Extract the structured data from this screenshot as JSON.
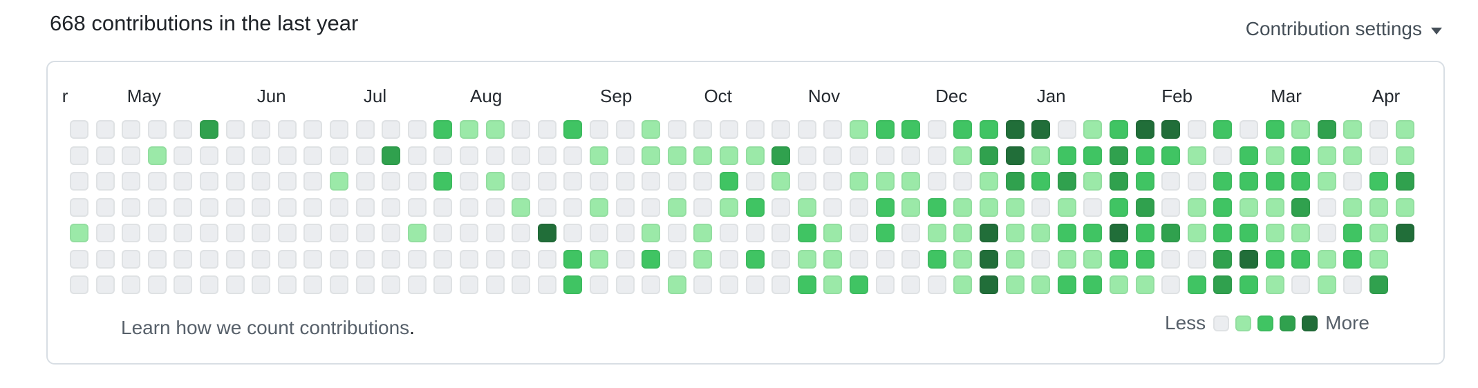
{
  "header": {
    "title": "668 contributions in the last year",
    "settings_label": "Contribution settings"
  },
  "footer": {
    "link_text": "Learn how we count contributions",
    "period": ".",
    "legend_less": "Less",
    "legend_more": "More"
  },
  "chart_data": {
    "type": "heatmap",
    "title": "668 contributions in the last year",
    "rows": "days (Sun-Sat, top to bottom)",
    "columns": "weeks (52, oldest to newest; last week partial with 5 days)",
    "legend_position": "bottom-right",
    "palette": [
      "#ebedf0",
      "#9be9a8",
      "#40c463",
      "#30a14e",
      "#216e39"
    ],
    "month_labels": [
      {
        "label": "r",
        "col": -0.3
      },
      {
        "label": "May",
        "col": 2.2
      },
      {
        "label": "Jun",
        "col": 7.2
      },
      {
        "label": "Jul",
        "col": 11.3
      },
      {
        "label": "Aug",
        "col": 15.4
      },
      {
        "label": "Sep",
        "col": 20.4
      },
      {
        "label": "Oct",
        "col": 24.4
      },
      {
        "label": "Nov",
        "col": 28.4
      },
      {
        "label": "Dec",
        "col": 33.3
      },
      {
        "label": "Jan",
        "col": 37.2
      },
      {
        "label": "Feb",
        "col": 42.0
      },
      {
        "label": "Mar",
        "col": 46.2
      },
      {
        "label": "Apr",
        "col": 50.1
      }
    ],
    "weeks": [
      [
        0,
        0,
        0,
        0,
        1,
        0,
        0
      ],
      [
        0,
        0,
        0,
        0,
        0,
        0,
        0
      ],
      [
        0,
        0,
        0,
        0,
        0,
        0,
        0
      ],
      [
        0,
        1,
        0,
        0,
        0,
        0,
        0
      ],
      [
        0,
        0,
        0,
        0,
        0,
        0,
        0
      ],
      [
        3,
        0,
        0,
        0,
        0,
        0,
        0
      ],
      [
        0,
        0,
        0,
        0,
        0,
        0,
        0
      ],
      [
        0,
        0,
        0,
        0,
        0,
        0,
        0
      ],
      [
        0,
        0,
        0,
        0,
        0,
        0,
        0
      ],
      [
        0,
        0,
        0,
        0,
        0,
        0,
        0
      ],
      [
        0,
        0,
        1,
        0,
        0,
        0,
        0
      ],
      [
        0,
        0,
        0,
        0,
        0,
        0,
        0
      ],
      [
        0,
        3,
        0,
        0,
        0,
        0,
        0
      ],
      [
        0,
        0,
        0,
        0,
        1,
        0,
        0
      ],
      [
        2,
        0,
        2,
        0,
        0,
        0,
        0
      ],
      [
        1,
        0,
        0,
        0,
        0,
        0,
        0
      ],
      [
        1,
        0,
        1,
        0,
        0,
        0,
        0
      ],
      [
        0,
        0,
        0,
        1,
        0,
        0,
        0
      ],
      [
        0,
        0,
        0,
        0,
        4,
        0,
        0
      ],
      [
        2,
        0,
        0,
        0,
        0,
        2,
        2
      ],
      [
        0,
        1,
        0,
        1,
        0,
        1,
        0
      ],
      [
        0,
        0,
        0,
        0,
        0,
        0,
        0
      ],
      [
        1,
        1,
        0,
        0,
        1,
        2,
        0
      ],
      [
        0,
        1,
        0,
        1,
        0,
        0,
        1
      ],
      [
        0,
        1,
        0,
        0,
        1,
        1,
        0
      ],
      [
        0,
        1,
        2,
        1,
        0,
        0,
        0
      ],
      [
        0,
        1,
        0,
        2,
        0,
        2,
        0
      ],
      [
        0,
        3,
        1,
        0,
        0,
        0,
        0
      ],
      [
        0,
        0,
        0,
        1,
        2,
        1,
        2
      ],
      [
        0,
        0,
        0,
        0,
        1,
        1,
        1
      ],
      [
        1,
        0,
        1,
        0,
        0,
        0,
        2
      ],
      [
        2,
        0,
        1,
        2,
        2,
        0,
        0
      ],
      [
        2,
        0,
        1,
        1,
        0,
        0,
        0
      ],
      [
        0,
        0,
        0,
        2,
        1,
        2,
        0
      ],
      [
        2,
        1,
        0,
        1,
        1,
        1,
        1
      ],
      [
        2,
        3,
        1,
        1,
        4,
        4,
        4
      ],
      [
        4,
        4,
        3,
        1,
        1,
        1,
        1
      ],
      [
        4,
        1,
        2,
        0,
        1,
        0,
        1
      ],
      [
        0,
        2,
        3,
        1,
        2,
        1,
        2
      ],
      [
        1,
        2,
        1,
        0,
        2,
        1,
        2
      ],
      [
        2,
        3,
        3,
        2,
        4,
        2,
        1
      ],
      [
        4,
        2,
        2,
        3,
        2,
        2,
        1
      ],
      [
        4,
        2,
        0,
        0,
        3,
        0,
        0
      ],
      [
        0,
        1,
        0,
        1,
        1,
        0,
        2
      ],
      [
        2,
        0,
        2,
        2,
        2,
        3,
        3
      ],
      [
        0,
        2,
        2,
        1,
        2,
        4,
        2
      ],
      [
        2,
        1,
        2,
        1,
        1,
        2,
        1
      ],
      [
        1,
        2,
        2,
        3,
        1,
        2,
        0
      ],
      [
        3,
        1,
        1,
        0,
        0,
        1,
        1
      ],
      [
        1,
        1,
        0,
        1,
        2,
        2,
        0
      ],
      [
        0,
        0,
        2,
        1,
        1,
        1,
        3
      ],
      [
        1,
        1,
        3,
        1,
        4
      ]
    ]
  }
}
